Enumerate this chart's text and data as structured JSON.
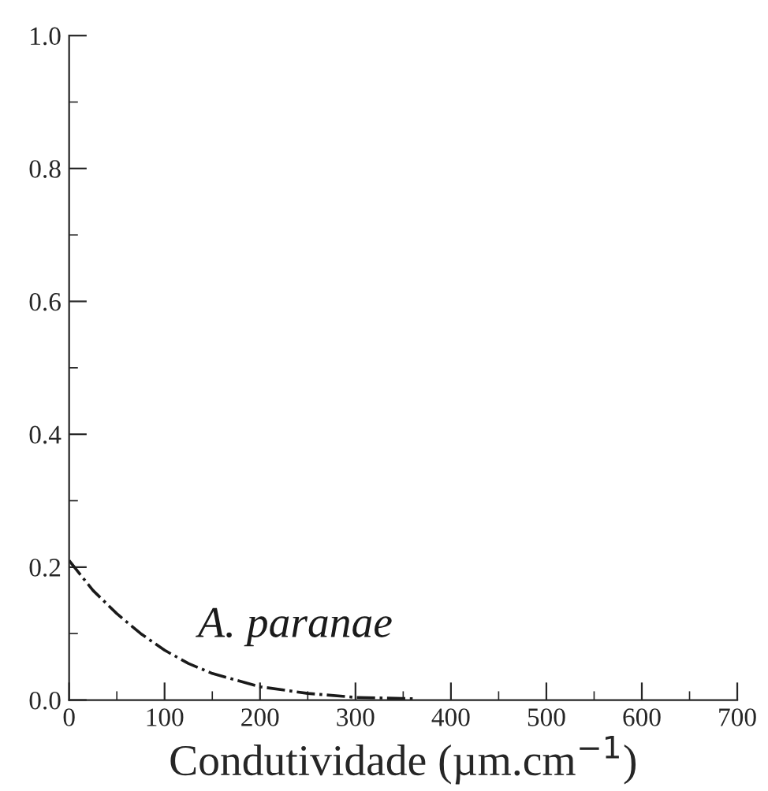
{
  "chart_data": {
    "type": "line",
    "xlabel": "Condutividade (µm.cm$^{−1}$)",
    "x": [
      0,
      25,
      50,
      75,
      100,
      125,
      150,
      175,
      200,
      250,
      300,
      360
    ],
    "series": [
      {
        "name": "A. paranae",
        "color": "#1a1a1a",
        "values": [
          0.21,
          0.165,
          0.13,
          0.1,
          0.075,
          0.055,
          0.04,
          0.03,
          0.02,
          0.01,
          0.004,
          0.002
        ]
      }
    ],
    "line_style": "dashdot",
    "marker": "none",
    "grid": false,
    "legend": false,
    "xlim": [
      0,
      700
    ],
    "ylim": [
      0,
      1.0
    ],
    "xticks": [
      0,
      100,
      200,
      300,
      400,
      500,
      600,
      700
    ],
    "yticks": [
      {
        "value": 0,
        "label": "0.0"
      },
      {
        "value": 0.2,
        "label": "0.2"
      },
      {
        "value": 0.4,
        "label": "0.4"
      },
      {
        "value": 0.6,
        "label": "0.6"
      },
      {
        "value": 0.8,
        "label": "0.8"
      },
      {
        "value": 1.0,
        "label": "1.0"
      }
    ]
  }
}
